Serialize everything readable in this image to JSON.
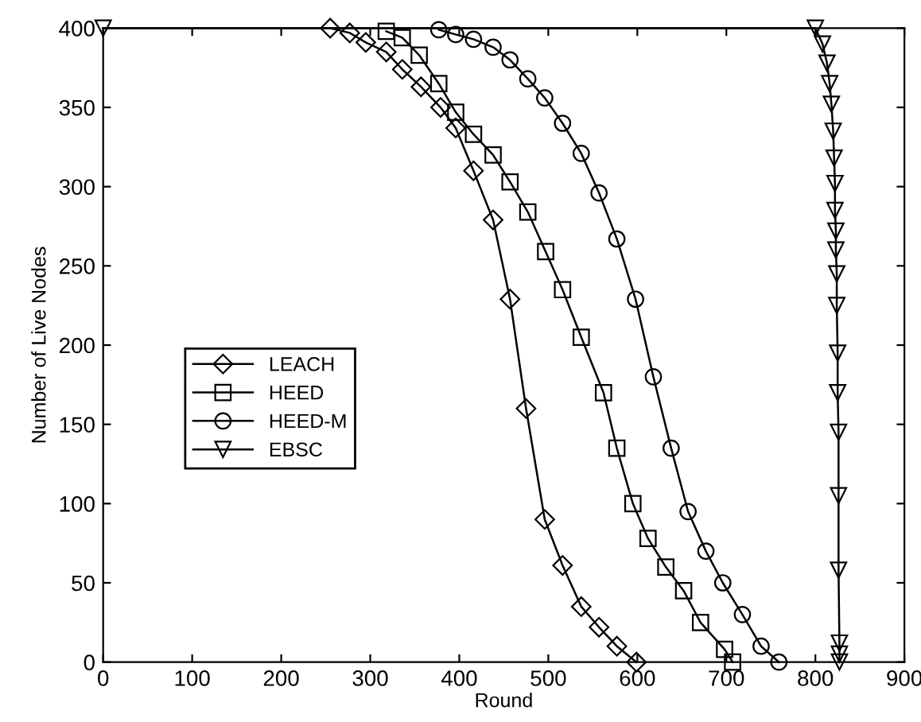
{
  "chart_data": {
    "type": "line",
    "xlabel": "Round",
    "ylabel": "Number of Live Nodes",
    "xlim": [
      0,
      900
    ],
    "ylim": [
      0,
      400
    ],
    "xticks": [
      0,
      100,
      200,
      300,
      400,
      500,
      600,
      700,
      800,
      900
    ],
    "yticks": [
      0,
      50,
      100,
      150,
      200,
      250,
      300,
      350,
      400
    ],
    "legend": "left",
    "grid": false,
    "series": [
      {
        "name": "LEACH",
        "color": "#000000",
        "marker": "diamond",
        "x": [
          255,
          277,
          295,
          318,
          336,
          357,
          379,
          396,
          416,
          438,
          457,
          475,
          496,
          516,
          537,
          557,
          577,
          599
        ],
        "values": [
          400,
          397,
          391,
          385,
          374,
          363,
          350,
          337,
          310,
          279,
          229,
          160,
          90,
          61,
          35,
          22,
          10,
          0
        ]
      },
      {
        "name": "HEED",
        "color": "#000000",
        "marker": "square",
        "x": [
          318,
          336,
          355,
          377,
          396,
          416,
          438,
          457,
          477,
          497,
          516,
          537,
          562,
          577,
          595,
          612,
          632,
          652,
          671,
          698,
          707
        ],
        "values": [
          398,
          394,
          383,
          365,
          347,
          333,
          320,
          303,
          284,
          259,
          235,
          205,
          170,
          135,
          100,
          78,
          60,
          45,
          25,
          8,
          0
        ]
      },
      {
        "name": "HEED-M",
        "color": "#000000",
        "marker": "circle",
        "x": [
          377,
          396,
          416,
          438,
          457,
          477,
          496,
          516,
          537,
          557,
          577,
          598,
          618,
          638,
          657,
          677,
          696,
          718,
          739,
          759
        ],
        "values": [
          399,
          396,
          393,
          388,
          380,
          368,
          356,
          340,
          321,
          296,
          267,
          229,
          180,
          135,
          95,
          70,
          50,
          30,
          10,
          0
        ]
      },
      {
        "name": "EBSC",
        "color": "#000000",
        "marker": "triangle",
        "x": [
          0,
          800,
          808,
          813,
          816,
          818,
          820,
          821,
          822,
          822,
          823,
          823,
          824,
          824,
          825,
          825,
          826,
          826,
          826,
          827,
          827,
          827
        ],
        "values": [
          400,
          400,
          390,
          378,
          365,
          352,
          335,
          318,
          302,
          285,
          272,
          260,
          245,
          225,
          195,
          170,
          145,
          105,
          58,
          12,
          5,
          0
        ]
      }
    ]
  }
}
